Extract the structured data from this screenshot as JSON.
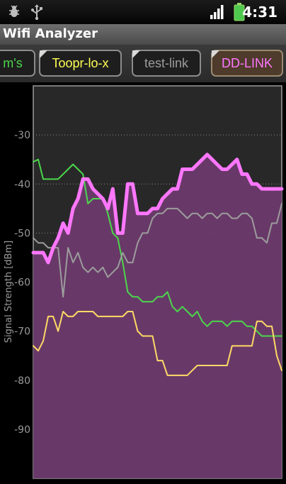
{
  "status_bar": {
    "time": "4:31",
    "icons": [
      "bug-icon",
      "usb-icon",
      "signal-icon",
      "battery-icon"
    ]
  },
  "app": {
    "title": "Wifi Analyzer"
  },
  "tabs": [
    {
      "label": "m's",
      "color": "#4cd64c",
      "selected": false
    },
    {
      "label": "Toopr-lo-x",
      "color": "#ffff55",
      "selected": false
    },
    {
      "label": "test-link",
      "color": "#9c9c9c",
      "selected": false
    },
    {
      "label": "DD-LINK",
      "color": "#ff77ff",
      "selected": true
    }
  ],
  "chart_data": {
    "type": "line",
    "ylabel": "Signal Strength [dBm]",
    "ylim": [
      -100,
      -20
    ],
    "yticks": [
      -30,
      -40,
      -50,
      -60,
      -70,
      -80,
      -90
    ],
    "grid": true,
    "x": [
      0,
      1,
      2,
      3,
      4,
      5,
      6,
      7,
      8,
      9,
      10,
      11,
      12,
      13,
      14,
      15,
      16,
      17,
      18,
      19,
      20,
      21,
      22,
      23,
      24,
      25,
      26,
      27,
      28,
      29,
      30,
      31,
      32,
      33,
      34,
      35,
      36,
      37,
      38,
      39,
      40,
      41,
      42,
      43,
      44,
      45,
      46,
      47,
      48,
      49,
      50
    ],
    "series": [
      {
        "name": "DD-LINK",
        "color": "#ff77ff",
        "width": 5,
        "fill": "#6b3a6b",
        "values": [
          -54,
          -54,
          -54,
          -56,
          -53,
          -51,
          -48,
          -50,
          -45,
          -43,
          -39,
          -39,
          -41,
          -42,
          -43,
          -45,
          -41,
          -50,
          -50,
          -40,
          -40,
          -46,
          -46,
          -46,
          -45,
          -45,
          -43,
          -42,
          -41,
          -41,
          -37,
          -37,
          -37,
          -36,
          -35,
          -34,
          -35,
          -36,
          -37,
          -37,
          -36,
          -35,
          -38,
          -38,
          -40,
          -40,
          -41,
          -41,
          -41,
          -41,
          -41
        ]
      },
      {
        "name": "m's",
        "color": "#4cd64c",
        "width": 2,
        "values": [
          -35.5,
          -35,
          -39,
          -39,
          -39,
          -39,
          -38,
          -37,
          -36,
          -37,
          -38,
          -44,
          -43,
          -43,
          -43,
          -46,
          -50,
          -51,
          -56,
          -62,
          -63,
          -63,
          -64,
          -64,
          -64,
          -63,
          -63,
          -62,
          -65,
          -66,
          -65,
          -66,
          -67,
          -66,
          -68,
          -69,
          -68,
          -68,
          -68,
          -69,
          -68,
          -68,
          -68,
          -69,
          -69,
          -70,
          -71,
          -71,
          -71,
          -71,
          -71
        ]
      },
      {
        "name": "test-link",
        "color": "#9c9c9c",
        "width": 2,
        "values": [
          -51,
          -52,
          -52,
          -53,
          -53,
          -53,
          -63,
          -53,
          -56,
          -54,
          -57,
          -58,
          -57,
          -58,
          -57,
          -59,
          -58,
          -57,
          -54,
          -56,
          -56,
          -52,
          -50,
          -50,
          -47,
          -46,
          -46,
          -45,
          -45,
          -45,
          -46,
          -47,
          -46,
          -46,
          -47,
          -46,
          -46,
          -47,
          -46,
          -46,
          -47,
          -47,
          -46,
          -46,
          -47,
          -51,
          -51,
          -52,
          -48,
          -48,
          -44
        ]
      },
      {
        "name": "Toopr-lo-x",
        "color": "#ffd966",
        "width": 2,
        "values": [
          -73,
          -74,
          -72,
          -67,
          -67,
          -70,
          -66,
          -67,
          -67,
          -66,
          -66,
          -66,
          -66,
          -67,
          -67,
          -67,
          -67,
          -67,
          -67,
          -66,
          -66,
          -70,
          -71,
          -71,
          -71,
          -76,
          -76,
          -79,
          -79,
          -79,
          -79,
          -79,
          -78,
          -77,
          -77,
          -77,
          -77,
          -77,
          -77,
          -77,
          -73,
          -73,
          -73,
          -73,
          -73,
          -68,
          -68,
          -69,
          -69,
          -75,
          -78
        ]
      }
    ]
  }
}
